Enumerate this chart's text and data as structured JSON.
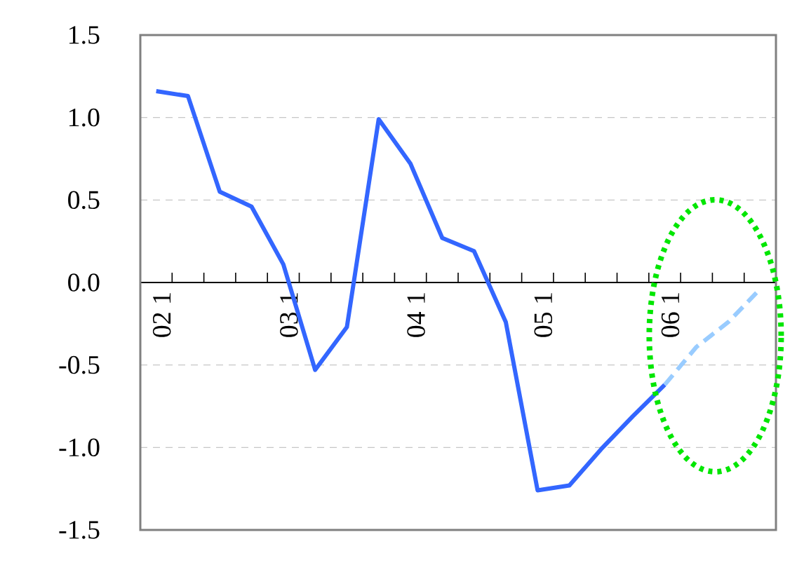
{
  "chart_data": {
    "type": "line",
    "categories": [
      "02 1",
      null,
      null,
      null,
      "03 1",
      null,
      null,
      null,
      "04 1",
      null,
      null,
      null,
      "05 1",
      null,
      null,
      null,
      "06 1",
      null,
      null,
      null
    ],
    "series": [
      {
        "color": "#3366ff",
        "line_style": "solid",
        "values": [
          1.16,
          1.13,
          0.55,
          0.46,
          0.11,
          -0.53,
          -0.27,
          0.99,
          0.72,
          0.27,
          0.19,
          -0.24,
          -1.26,
          -1.23,
          -1.01,
          -0.81,
          -0.62,
          null,
          null,
          null
        ]
      },
      {
        "color": "#99ccff",
        "line_style": "dashed",
        "values": [
          null,
          null,
          null,
          null,
          null,
          null,
          null,
          null,
          null,
          null,
          null,
          null,
          null,
          null,
          null,
          null,
          -0.62,
          -0.39,
          -0.24,
          -0.04
        ]
      }
    ],
    "ylim": [
      -1.5,
      1.5
    ],
    "yticks": [
      {
        "value": -1.5,
        "label": "-1.5"
      },
      {
        "value": -1,
        "label": "-1.0"
      },
      {
        "value": -0.5,
        "label": "-0.5"
      },
      {
        "value": 0,
        "label": "0.0"
      },
      {
        "value": 0.5,
        "label": "0.5"
      },
      {
        "value": 1,
        "label": "1.0"
      },
      {
        "value": 1.5,
        "label": "1.5"
      }
    ],
    "grid": "y",
    "marker": "none"
  }
}
